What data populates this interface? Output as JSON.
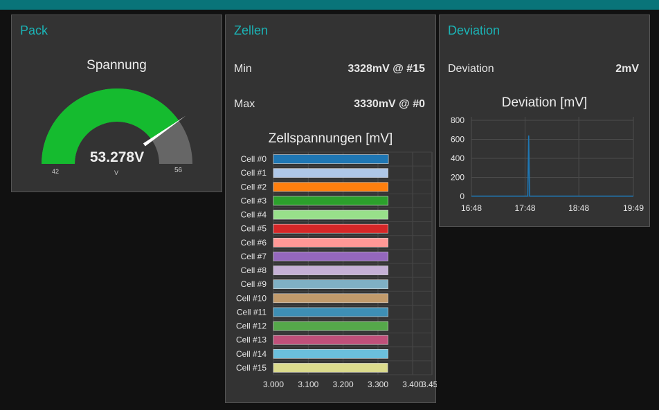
{
  "header": {
    "bar_color": "#097479"
  },
  "pack": {
    "title": "Pack",
    "gauge": {
      "label": "Spannung",
      "value": 53.278,
      "value_text": "53.278V",
      "unit": "V",
      "min": 42,
      "max": 56,
      "min_text": "42",
      "max_text": "56",
      "fill_color": "#15bb2f",
      "track_color": "#666666"
    }
  },
  "zellen": {
    "title": "Zellen",
    "min_label": "Min",
    "min_value": "3328mV @ #15",
    "max_label": "Max",
    "max_value": "3330mV @ #0"
  },
  "deviation": {
    "title": "Deviation",
    "row_label": "Deviation",
    "row_value": "2mV"
  },
  "chart_data": [
    {
      "type": "bar",
      "orientation": "horizontal",
      "title": "Zellspannungen [mV]",
      "categories": [
        "Cell #0",
        "Cell #1",
        "Cell #2",
        "Cell #3",
        "Cell #4",
        "Cell #5",
        "Cell #6",
        "Cell #7",
        "Cell #8",
        "Cell #9",
        "Cell #10",
        "Cell #11",
        "Cell #12",
        "Cell #13",
        "Cell #14",
        "Cell #15"
      ],
      "values": [
        3.33,
        3.329,
        3.329,
        3.329,
        3.329,
        3.329,
        3.329,
        3.329,
        3.329,
        3.329,
        3.329,
        3.329,
        3.329,
        3.329,
        3.329,
        3.328
      ],
      "colors": [
        "#1f77b4",
        "#aec7e8",
        "#ff7f0e",
        "#2ca02c",
        "#98df8a",
        "#d62728",
        "#ff9896",
        "#9467bd",
        "#c5b0d5",
        "#7fb0c4",
        "#c19a6b",
        "#3e8fb5",
        "#55a84a",
        "#c0507a",
        "#6bbfdc",
        "#dbdb8d"
      ],
      "xlim": [
        3.0,
        3.455
      ],
      "xticks": [
        "3.000",
        "3.100",
        "3.200",
        "3.300",
        "3.400",
        "3.455"
      ],
      "grid": true
    },
    {
      "type": "line",
      "title": "Deviation [mV]",
      "x": [
        "16:48",
        "17:48",
        "18:48",
        "19:49"
      ],
      "xlim": [
        "16:48",
        "19:49"
      ],
      "ylim": [
        0,
        800
      ],
      "yticks": [
        "800",
        "600",
        "400",
        "200",
        "0"
      ],
      "points": [
        [
          "16:48",
          2
        ],
        [
          "17:51",
          2
        ],
        [
          "17:52",
          640
        ],
        [
          "17:53",
          2
        ],
        [
          "19:49",
          2
        ]
      ],
      "line_color": "#1f77b4",
      "grid": true
    }
  ]
}
